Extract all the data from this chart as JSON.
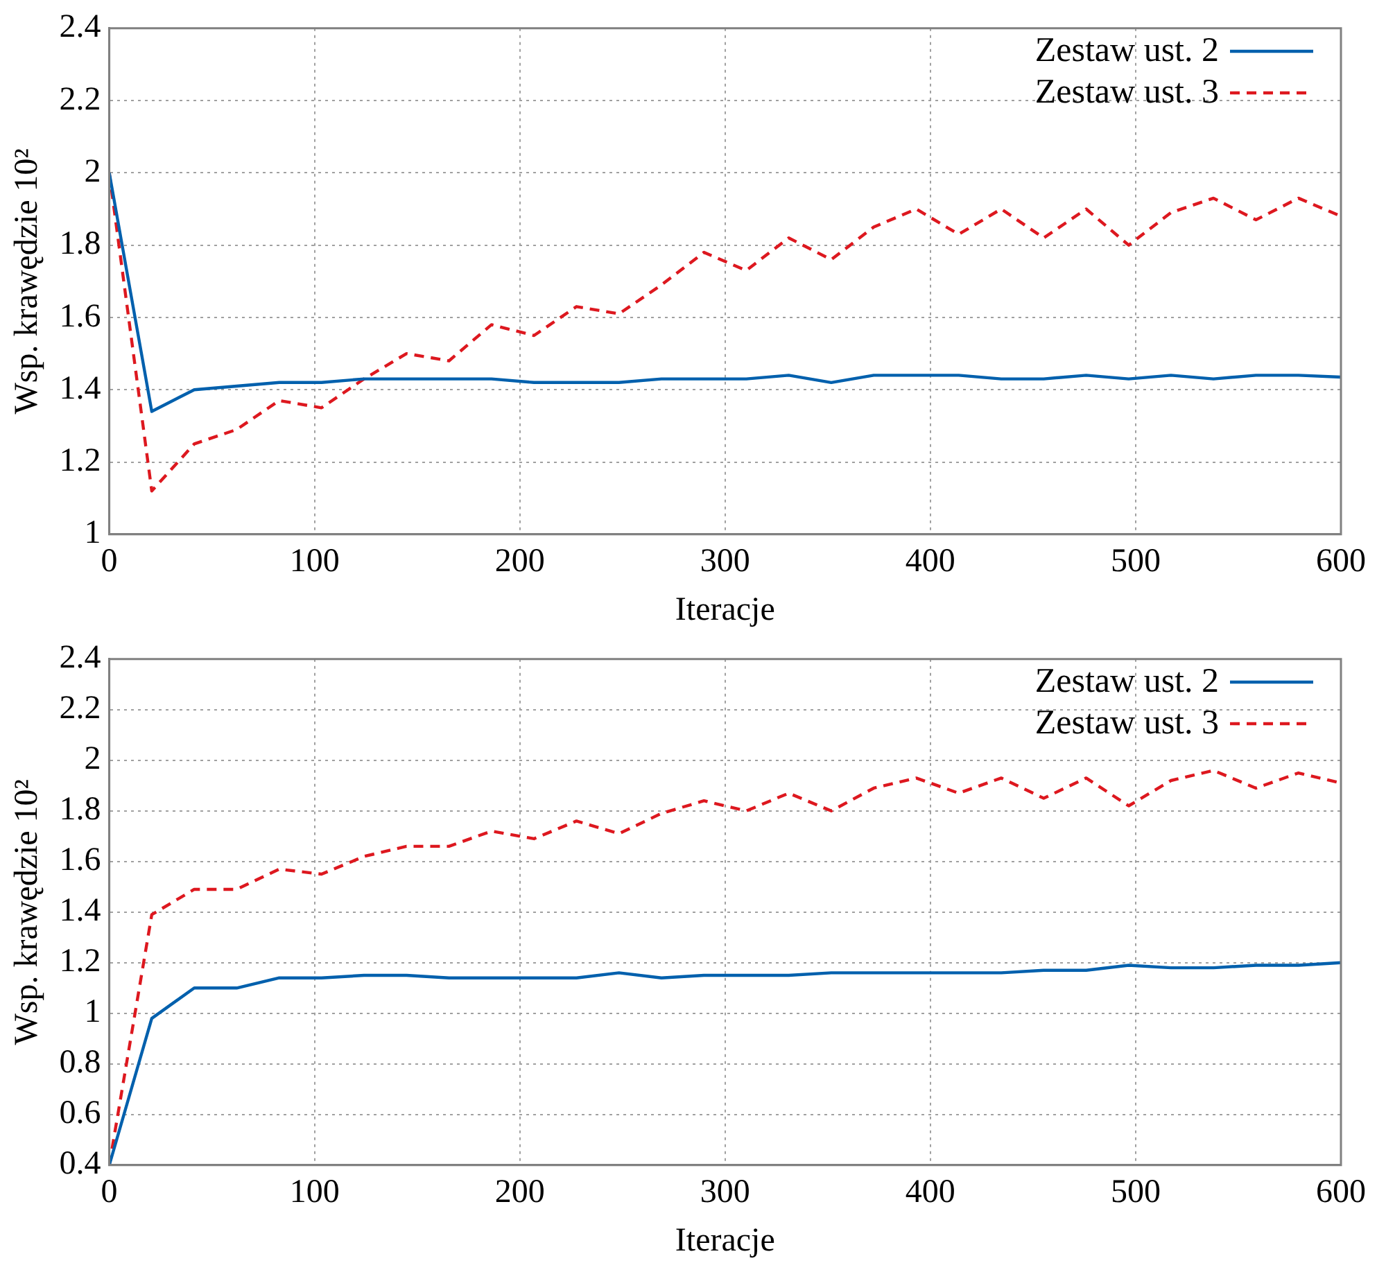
{
  "chart_data": [
    {
      "type": "line",
      "xlabel": "Iteracje",
      "ylabel": "Wsp. krawędzie 10²",
      "x": [
        0,
        20.7,
        41.4,
        62.1,
        82.8,
        103.4,
        124.1,
        144.8,
        165.5,
        186.2,
        206.9,
        227.6,
        248.3,
        269,
        289.7,
        310.3,
        331,
        351.7,
        372.4,
        393.1,
        413.8,
        434.5,
        455.2,
        475.9,
        496.6,
        517.2,
        537.9,
        558.6,
        579.3,
        600
      ],
      "xlim": [
        0,
        600
      ],
      "xticks": [
        0,
        100,
        200,
        300,
        400,
        500,
        600
      ],
      "ylim": [
        1,
        2.4
      ],
      "yticks": [
        1,
        1.2,
        1.4,
        1.6,
        1.8,
        2,
        2.2,
        2.4
      ],
      "grid": true,
      "legend": "top right",
      "series": [
        {
          "name": "Zestaw ust. 2",
          "color": "#0060ad",
          "line_style": "solid",
          "values": [
            2.0,
            1.34,
            1.4,
            1.41,
            1.42,
            1.42,
            1.43,
            1.43,
            1.43,
            1.43,
            1.42,
            1.42,
            1.42,
            1.43,
            1.43,
            1.43,
            1.44,
            1.42,
            1.44,
            1.44,
            1.44,
            1.43,
            1.43,
            1.44,
            1.43,
            1.44,
            1.43,
            1.44,
            1.44,
            1.435
          ]
        },
        {
          "name": "Zestaw ust. 3",
          "color": "#dd181f",
          "line_style": "dashed",
          "values": [
            2.0,
            1.12,
            1.25,
            1.29,
            1.37,
            1.35,
            1.43,
            1.5,
            1.48,
            1.58,
            1.55,
            1.63,
            1.61,
            1.69,
            1.78,
            1.73,
            1.82,
            1.76,
            1.85,
            1.9,
            1.83,
            1.9,
            1.82,
            1.9,
            1.8,
            1.89,
            1.93,
            1.87,
            1.93,
            1.88
          ]
        }
      ]
    },
    {
      "type": "line",
      "xlabel": "Iteracje",
      "ylabel": "Wsp. krawędzie 10²",
      "x": [
        0,
        20.7,
        41.4,
        62.1,
        82.8,
        103.4,
        124.1,
        144.8,
        165.5,
        186.2,
        206.9,
        227.6,
        248.3,
        269,
        289.7,
        310.3,
        331,
        351.7,
        372.4,
        393.1,
        413.8,
        434.5,
        455.2,
        475.9,
        496.6,
        517.2,
        537.9,
        558.6,
        579.3,
        600
      ],
      "xlim": [
        0,
        600
      ],
      "xticks": [
        0,
        100,
        200,
        300,
        400,
        500,
        600
      ],
      "ylim": [
        0.4,
        2.4
      ],
      "yticks": [
        0.4,
        0.6,
        0.8,
        1,
        1.2,
        1.4,
        1.6,
        1.8,
        2,
        2.2,
        2.4
      ],
      "grid": true,
      "legend": "top right",
      "series": [
        {
          "name": "Zestaw ust. 2",
          "color": "#0060ad",
          "line_style": "solid",
          "values": [
            0.4,
            0.98,
            1.1,
            1.1,
            1.14,
            1.14,
            1.15,
            1.15,
            1.14,
            1.14,
            1.14,
            1.14,
            1.16,
            1.14,
            1.15,
            1.15,
            1.15,
            1.16,
            1.16,
            1.16,
            1.16,
            1.16,
            1.17,
            1.17,
            1.19,
            1.18,
            1.18,
            1.19,
            1.19,
            1.2
          ]
        },
        {
          "name": "Zestaw ust. 3",
          "color": "#dd181f",
          "line_style": "dashed",
          "values": [
            0.4,
            1.39,
            1.49,
            1.49,
            1.57,
            1.55,
            1.62,
            1.66,
            1.66,
            1.72,
            1.69,
            1.76,
            1.71,
            1.79,
            1.84,
            1.8,
            1.87,
            1.8,
            1.89,
            1.93,
            1.87,
            1.93,
            1.85,
            1.93,
            1.82,
            1.92,
            1.96,
            1.89,
            1.95,
            1.91
          ]
        }
      ]
    }
  ]
}
